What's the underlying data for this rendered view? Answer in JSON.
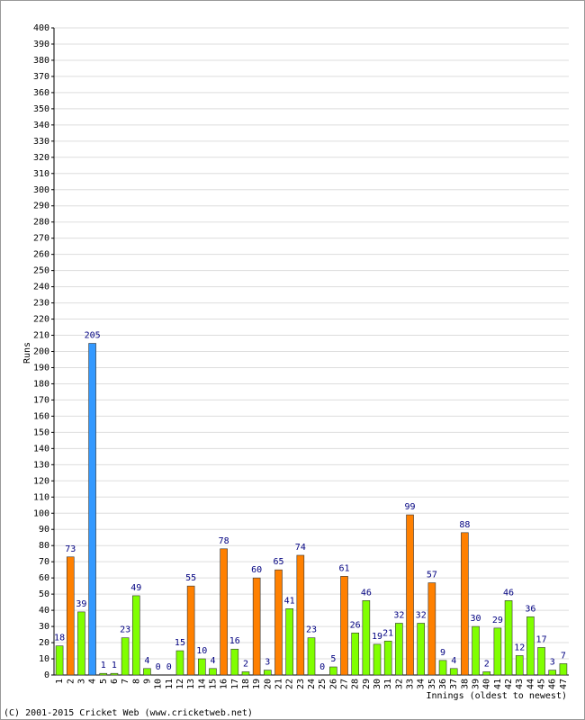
{
  "chart_data": {
    "type": "bar",
    "y_label": "Runs",
    "x_label": "Innings (oldest to newest)",
    "footer": "(C) 2001-2015 Cricket Web (www.cricketweb.net)",
    "categories": [
      "1",
      "2",
      "3",
      "4",
      "5",
      "6",
      "7",
      "8",
      "9",
      "10",
      "11",
      "12",
      "13",
      "14",
      "15",
      "16",
      "17",
      "18",
      "19",
      "20",
      "21",
      "22",
      "23",
      "24",
      "25",
      "26",
      "27",
      "28",
      "29",
      "30",
      "31",
      "32",
      "33",
      "34",
      "35",
      "36",
      "37",
      "38",
      "39",
      "40",
      "41",
      "42",
      "43",
      "44",
      "45",
      "46",
      "47"
    ],
    "values": [
      18,
      73,
      39,
      205,
      1,
      1,
      23,
      49,
      4,
      0,
      0,
      15,
      55,
      10,
      4,
      78,
      16,
      2,
      60,
      3,
      65,
      41,
      74,
      23,
      0,
      5,
      61,
      26,
      46,
      19,
      21,
      32,
      99,
      32,
      57,
      9,
      4,
      88,
      30,
      2,
      29,
      46,
      12,
      36,
      17,
      3,
      7
    ],
    "colors": [
      "#80ff00",
      "#ff8000",
      "#80ff00",
      "#3399ff",
      "#80ff00",
      "#80ff00",
      "#80ff00",
      "#80ff00",
      "#80ff00",
      "#80ff00",
      "#80ff00",
      "#80ff00",
      "#ff8000",
      "#80ff00",
      "#80ff00",
      "#ff8000",
      "#80ff00",
      "#80ff00",
      "#ff8000",
      "#80ff00",
      "#ff8000",
      "#80ff00",
      "#ff8000",
      "#80ff00",
      "#80ff00",
      "#80ff00",
      "#ff8000",
      "#80ff00",
      "#80ff00",
      "#80ff00",
      "#80ff00",
      "#80ff00",
      "#ff8000",
      "#80ff00",
      "#ff8000",
      "#80ff00",
      "#80ff00",
      "#ff8000",
      "#80ff00",
      "#80ff00",
      "#80ff00",
      "#80ff00",
      "#80ff00",
      "#80ff00",
      "#80ff00",
      "#80ff00",
      "#80ff00"
    ],
    "ylim": [
      0,
      400
    ],
    "yticks": [
      0,
      10,
      20,
      30,
      40,
      50,
      60,
      70,
      80,
      90,
      100,
      110,
      120,
      130,
      140,
      150,
      160,
      170,
      180,
      190,
      200,
      210,
      220,
      230,
      240,
      250,
      260,
      270,
      280,
      290,
      300,
      310,
      320,
      330,
      340,
      350,
      360,
      370,
      380,
      390,
      400
    ],
    "grid": true
  }
}
